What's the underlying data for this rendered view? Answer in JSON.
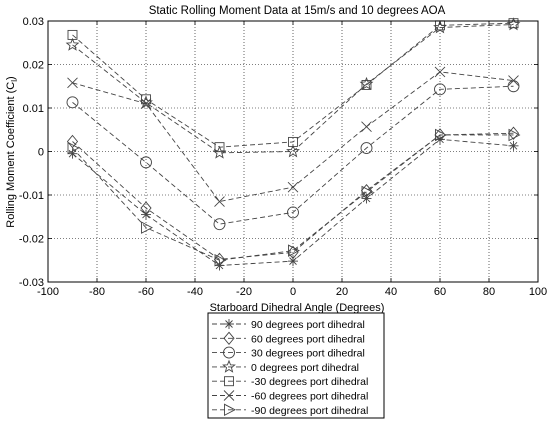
{
  "chart_data": {
    "type": "line",
    "title": "Static Rolling Moment Data at 15m/s and 10 degrees AOA",
    "xlabel": "Starboard Dihedral Angle (Degrees)",
    "ylabel": "Rolling Moment Coefficient (C",
    "ylabel_sub": "l",
    "ylabel_close": ")",
    "xlim": [
      -100,
      100
    ],
    "ylim": [
      -0.03,
      0.03
    ],
    "xticks": [
      -100,
      -80,
      -60,
      -40,
      -20,
      0,
      20,
      40,
      60,
      80,
      100
    ],
    "yticks": [
      -0.03,
      -0.02,
      -0.01,
      0,
      0.01,
      0.02,
      0.03
    ],
    "xtick_labels": [
      "-100",
      "-80",
      "-60",
      "-40",
      "-20",
      "0",
      "20",
      "40",
      "60",
      "80",
      "100"
    ],
    "ytick_labels": [
      "-0.03",
      "-0.02",
      "-0.01",
      "0",
      "0.01",
      "0.02",
      "0.03"
    ],
    "grid": true,
    "legend_position": "below",
    "x": [
      -90,
      -60,
      -30,
      0,
      30,
      60,
      90
    ],
    "series": [
      {
        "name": "90 degrees port dihedral",
        "marker": "asterisk",
        "values": [
          -0.0005,
          -0.0145,
          -0.0262,
          -0.0252,
          -0.0108,
          0.0028,
          0.0013
        ]
      },
      {
        "name": "60 degrees port dihedral",
        "marker": "diamond",
        "values": [
          0.0023,
          -0.013,
          -0.0248,
          -0.0232,
          -0.009,
          0.0038,
          0.0042
        ]
      },
      {
        "name": "30 degrees port dihedral",
        "marker": "circle",
        "values": [
          0.0113,
          -0.0025,
          -0.0167,
          -0.014,
          0.0008,
          0.0143,
          0.015
        ]
      },
      {
        "name": "0 degrees port dihedral",
        "marker": "star",
        "values": [
          0.0245,
          0.0112,
          -0.0003,
          0.0,
          0.0155,
          0.0285,
          0.0292
        ]
      },
      {
        "name": "-30 degrees port dihedral",
        "marker": "square",
        "values": [
          0.0268,
          0.012,
          0.001,
          0.0022,
          0.0153,
          0.029,
          0.0295
        ]
      },
      {
        "name": "-60 degrees port dihedral",
        "marker": "x",
        "values": [
          0.0158,
          0.011,
          -0.0115,
          -0.0082,
          0.0057,
          0.0183,
          0.0163
        ]
      },
      {
        "name": "-90 degrees port dihedral",
        "marker": "triangle-right",
        "values": [
          0.0008,
          -0.0175,
          -0.025,
          -0.0228,
          -0.0093,
          0.0038,
          0.0038
        ]
      }
    ]
  }
}
